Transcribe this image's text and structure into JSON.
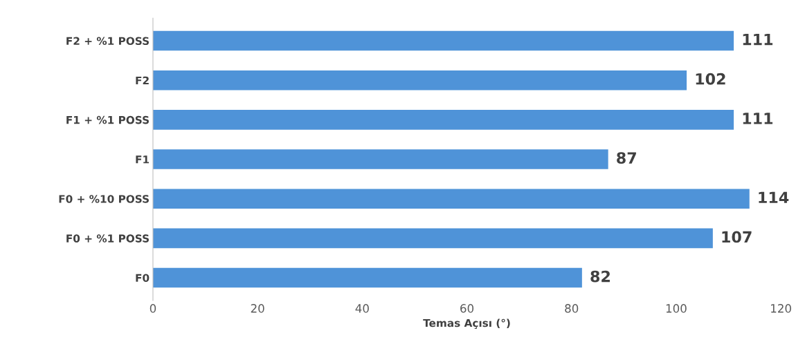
{
  "chart_data": {
    "type": "bar",
    "orientation": "horizontal",
    "xlabel": "Temas Açısı (°)",
    "categories": [
      "F2 + %1 POSS",
      "F2",
      "F1 + %1 POSS",
      "F1",
      "F0 + %10 POSS",
      "F0 + %1 POSS",
      "F0"
    ],
    "values": [
      111,
      102,
      111,
      87,
      114,
      107,
      82
    ],
    "color": "#4f93d8",
    "xlim": [
      0,
      120
    ],
    "xticks": [
      0,
      20,
      40,
      60,
      80,
      100,
      120
    ],
    "data_labels": true,
    "grid": false,
    "legend": false
  }
}
